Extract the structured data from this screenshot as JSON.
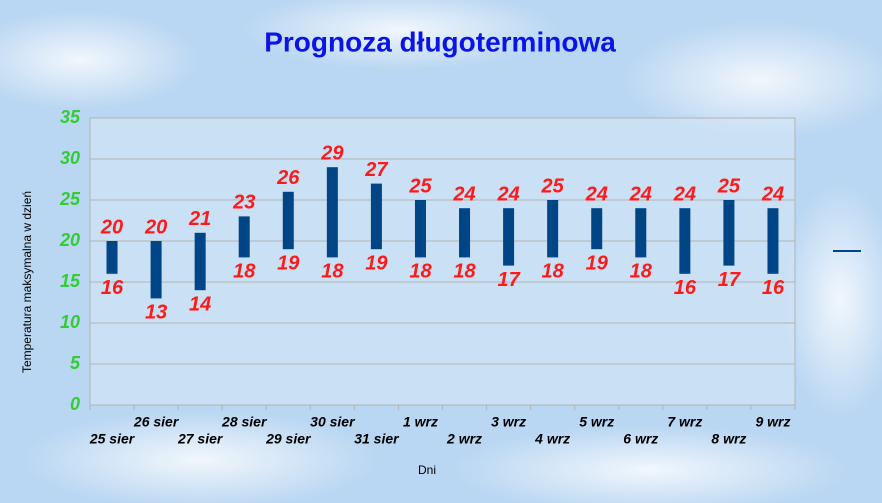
{
  "chart_data": {
    "type": "range_bar",
    "title": "Prognoza długoterminowa",
    "x_label": "Dni",
    "y_label": "Temperatura maksymalna w dzień",
    "categories": [
      "25 sier",
      "26 sier",
      "27 sier",
      "28 sier",
      "29 sier",
      "30 sier",
      "31 sier",
      "1 wrz",
      "2 wrz",
      "3 wrz",
      "4 wrz",
      "5 wrz",
      "6 wrz",
      "7 wrz",
      "8 wrz",
      "9 wrz"
    ],
    "high": [
      20,
      20,
      21,
      23,
      26,
      29,
      27,
      25,
      24,
      24,
      25,
      24,
      24,
      24,
      25,
      24
    ],
    "low": [
      16,
      13,
      14,
      18,
      19,
      18,
      19,
      18,
      18,
      17,
      18,
      19,
      18,
      16,
      17,
      16
    ],
    "color": "#004586",
    "ylim": [
      0,
      35
    ],
    "yticks": [
      0,
      5,
      10,
      15,
      20,
      25,
      30,
      35
    ],
    "grid": true
  }
}
